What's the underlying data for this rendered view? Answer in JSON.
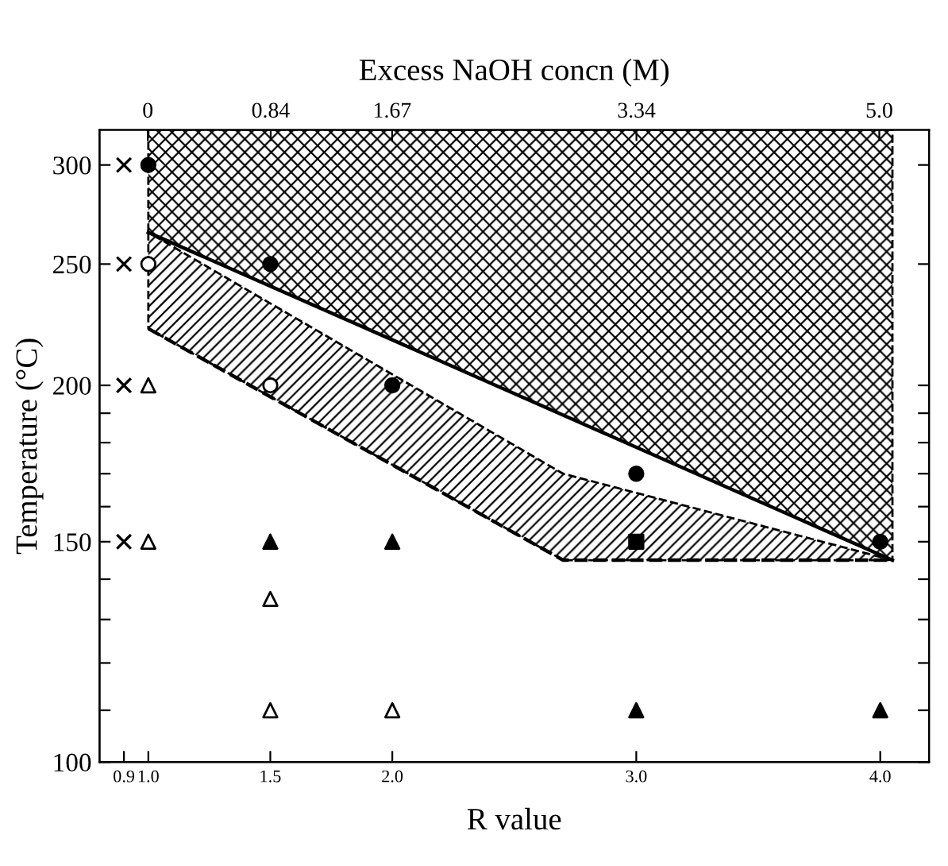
{
  "chart_data": {
    "type": "scatter",
    "xlabel": "R value",
    "ylabel": "Temperature (°C)",
    "x2label": "Excess NaOH concn (M)",
    "log": "y",
    "xlim": [
      0.8,
      4.2
    ],
    "xticks": [
      0.9,
      {
        "value": 1.0,
        "label": "1.0"
      },
      1.5,
      {
        "value": 2.0,
        "label": "2.0"
      },
      {
        "value": 3.0,
        "label": "3.0"
      },
      {
        "value": 4.0,
        "label": "4.0"
      }
    ],
    "x2lim": [
      -0.33,
      5.34
    ],
    "x2ticks": [
      0,
      0.84,
      1.67,
      3.34,
      {
        "value": 5.0,
        "label": "5.0"
      }
    ],
    "ylim": [
      100,
      320
    ],
    "yticks": [
      100,
      {
        "value": 110,
        "label": null
      },
      {
        "value": 120,
        "label": null
      },
      {
        "value": 130,
        "label": null
      },
      {
        "value": 140,
        "label": null
      },
      150,
      {
        "value": 160,
        "label": null
      },
      {
        "value": 170,
        "label": null
      },
      {
        "value": 180,
        "label": null
      },
      {
        "value": 190,
        "label": null
      },
      200,
      250,
      300
    ],
    "grid": false,
    "series": [
      {
        "type": "line",
        "color": "#000000",
        "line_style": "solid",
        "marker": "none",
        "x": [
          1.0,
          4.05
        ],
        "values": [
          265,
          145
        ],
        "lower": [
          265,
          145
        ],
        "upper": [
          320,
          320
        ]
      },
      {
        "type": "line",
        "color": "#000000",
        "line_style": "dashed",
        "marker": "none",
        "x": [
          1.0,
          2.7,
          4.05
        ],
        "values": [
          222,
          145,
          145
        ],
        "lower": [
          222,
          145,
          145
        ],
        "upper": [
          265,
          170,
          145
        ]
      },
      {
        "color": "#000000",
        "marker": "cross",
        "x": [
          0.9,
          0.9,
          0.9,
          0.9
        ],
        "values": [
          300,
          250,
          200,
          150
        ]
      },
      {
        "color": "#000000",
        "marker": "circle",
        "x": [
          1.0,
          1.5,
          2.0,
          3.0,
          4.0
        ],
        "values": [
          300,
          250,
          200,
          170,
          150
        ]
      },
      {
        "color": "#ffffff",
        "marker": "circle",
        "x": [
          1.0,
          1.5
        ],
        "values": [
          250,
          200
        ]
      },
      {
        "color": "#ffffff",
        "marker": "triangle",
        "x": [
          1.0,
          1.0,
          1.5,
          1.5,
          2.0
        ],
        "values": [
          200,
          150,
          135,
          110,
          110
        ]
      },
      {
        "color": "#000000",
        "marker": "triangle",
        "x": [
          1.5,
          2.0,
          3.0,
          4.0
        ],
        "values": [
          150,
          150,
          110,
          110
        ]
      },
      {
        "color": "#000000",
        "marker": "square",
        "x": [
          3.0
        ],
        "values": [
          150
        ]
      }
    ]
  }
}
